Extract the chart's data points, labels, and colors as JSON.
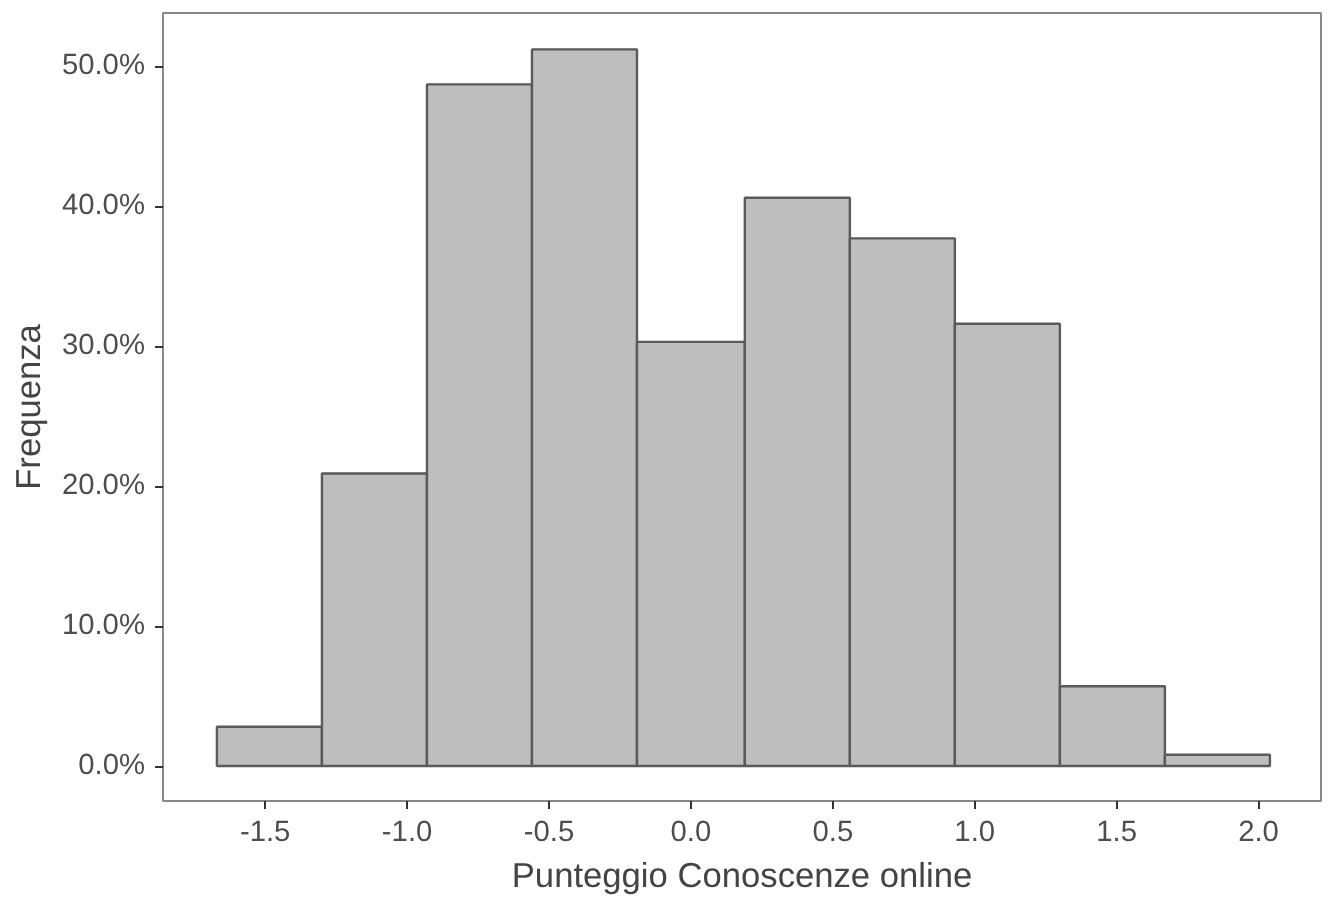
{
  "chart_data": {
    "type": "histogram",
    "xlabel": "Punteggio Conoscenze online",
    "ylabel": "Frequenza",
    "bins": [
      -1.67,
      -1.3,
      -0.93,
      -0.56,
      -0.19,
      0.19,
      0.56,
      0.93,
      1.3,
      1.67,
      2.04
    ],
    "values": [
      2.8,
      20.9,
      48.7,
      51.2,
      30.3,
      40.6,
      37.7,
      31.6,
      5.7,
      0.8
    ],
    "color": "#bebebe",
    "xlim": [
      -1.86,
      2.22
    ],
    "ylim": [
      -2.5,
      53.8
    ],
    "xticks": [
      -1.5,
      {
        "value": -1,
        "label": "-1.0"
      },
      -0.5,
      {
        "value": 0,
        "label": "0.0"
      },
      0.5,
      {
        "value": 1,
        "label": "1.0"
      },
      1.5,
      {
        "value": 2,
        "label": "2.0"
      }
    ],
    "yticks": [
      {
        "value": 0,
        "label": "0.0%"
      },
      {
        "value": 10,
        "label": "10.0%"
      },
      {
        "value": 20,
        "label": "20.0%"
      },
      {
        "value": 30,
        "label": "30.0%"
      },
      {
        "value": 40,
        "label": "40.0%"
      },
      {
        "value": 50,
        "label": "50.0%"
      }
    ],
    "grid": false
  }
}
